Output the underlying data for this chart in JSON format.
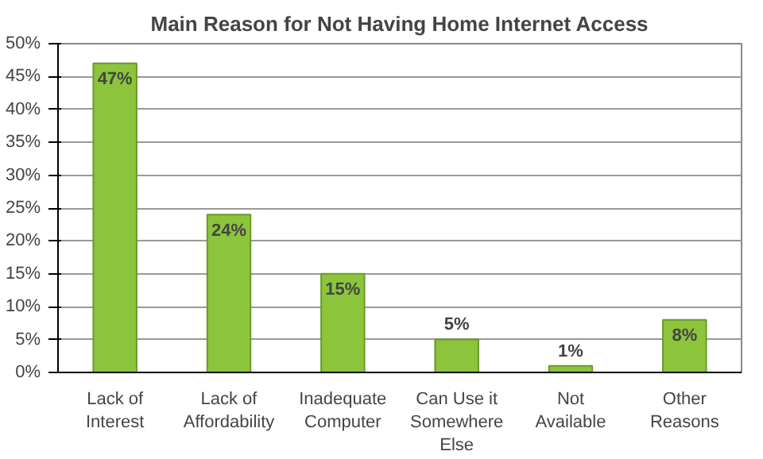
{
  "chart_data": {
    "type": "bar",
    "title": "Main Reason for Not Having Home Internet Access",
    "categories": [
      "Lack of Interest",
      "Lack of Affordability",
      "Inadequate Computer",
      "Can Use it Somewhere Else",
      "Not Available",
      "Other Reasons"
    ],
    "values": [
      47,
      24,
      15,
      5,
      1,
      8
    ],
    "color": "#8cc43c",
    "value_labels": [
      "47%",
      "24%",
      "15%",
      "5%",
      "1%",
      "8%"
    ],
    "ylim": [
      0,
      50
    ],
    "yticks": [
      {
        "value": 0,
        "label": "0%"
      },
      {
        "value": 5,
        "label": "5%"
      },
      {
        "value": 10,
        "label": "10%"
      },
      {
        "value": 15,
        "label": "15%"
      },
      {
        "value": 20,
        "label": "20%"
      },
      {
        "value": 25,
        "label": "25%"
      },
      {
        "value": 30,
        "label": "30%"
      },
      {
        "value": 35,
        "label": "35%"
      },
      {
        "value": 40,
        "label": "40%"
      },
      {
        "value": 45,
        "label": "45%"
      },
      {
        "value": 50,
        "label": "50%"
      }
    ],
    "grid": "y"
  }
}
